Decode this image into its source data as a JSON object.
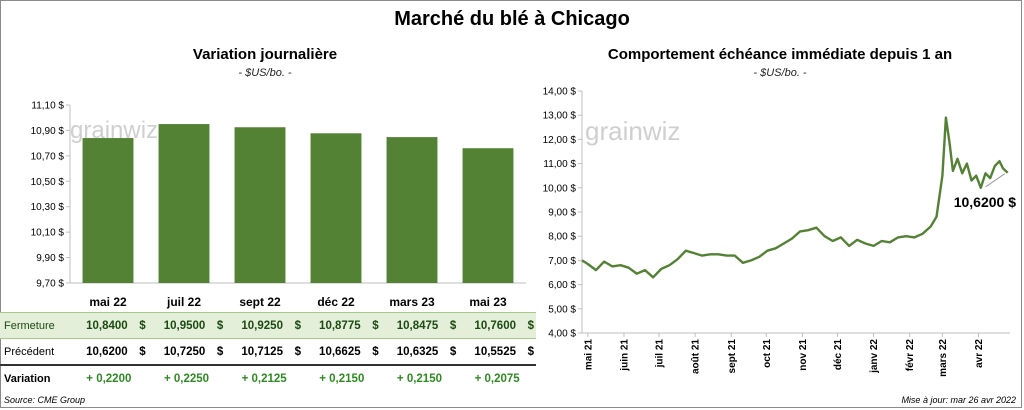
{
  "title": "Marché du blé à Chicago",
  "watermark": "grainwiz",
  "colors": {
    "bar": "#548235",
    "line": "#548235",
    "variation": "#2e8b22",
    "close_row_bg": "#e3efd9"
  },
  "left_chart": {
    "subtitle": "Variation journalière",
    "unit": "- $US/bo. -"
  },
  "right_chart": {
    "subtitle": "Comportement échéance immédiate depuis 1 an",
    "unit": "- $US/bo. -",
    "last_price_label": "10,6200 $"
  },
  "table": {
    "rows": [
      {
        "label": "Fermeture",
        "values": [
          "10,8400",
          "10,9500",
          "10,9250",
          "10,8775",
          "10,8475",
          "10,7600"
        ]
      },
      {
        "label": "Précédent",
        "values": [
          "10,6200",
          "10,7250",
          "10,7125",
          "10,6625",
          "10,6325",
          "10,5525"
        ]
      }
    ],
    "currency": "$",
    "variation_label": "Variation",
    "variations": [
      "+ 0,2200",
      "+ 0,2250",
      "+ 0,2125",
      "+ 0,2150",
      "+ 0,2150",
      "+ 0,2075"
    ]
  },
  "footer": {
    "source": "Source: CME Group",
    "updated": "Mise à jour: mar 26 avr 2022"
  },
  "chart_data": [
    {
      "type": "bar",
      "title": "Variation journalière",
      "categories": [
        "mai 22",
        "juil 22",
        "sept 22",
        "déc 22",
        "mars 23",
        "mai 23"
      ],
      "values": [
        10.84,
        10.95,
        10.925,
        10.8775,
        10.8475,
        10.76
      ],
      "ylim": [
        9.7,
        11.1
      ],
      "yticks": [
        "9,70 $",
        "9,90 $",
        "10,10 $",
        "10,30 $",
        "10,50 $",
        "10,70 $",
        "10,90 $",
        "11,10 $"
      ],
      "grid": false,
      "legend": "none"
    },
    {
      "type": "line",
      "title": "Comportement échéance immédiate depuis 1 an",
      "x_labels": [
        "mai 21",
        "juin 21",
        "juil 21",
        "août 21",
        "sept 21",
        "oct 21",
        "nov 21",
        "déc 21",
        "janv 22",
        "févr 22",
        "mars 22",
        "avr 22"
      ],
      "ylim": [
        4,
        14
      ],
      "yticks": [
        "4,00 $",
        "5,00 $",
        "6,00 $",
        "7,00 $",
        "8,00 $",
        "9,00 $",
        "10,00 $",
        "11,00 $",
        "12,00 $",
        "13,00 $",
        "14,00 $"
      ],
      "series": [
        {
          "x": [
            "2021-04-26",
            "2021-05-01",
            "2021-05-08",
            "2021-05-15",
            "2021-05-22",
            "2021-05-29",
            "2021-06-05",
            "2021-06-12",
            "2021-06-19",
            "2021-06-26",
            "2021-07-03",
            "2021-07-10",
            "2021-07-17",
            "2021-07-24",
            "2021-07-31",
            "2021-08-07",
            "2021-08-14",
            "2021-08-21",
            "2021-08-28",
            "2021-09-04",
            "2021-09-11",
            "2021-09-18",
            "2021-09-25",
            "2021-10-02",
            "2021-10-09",
            "2021-10-16",
            "2021-10-23",
            "2021-10-30",
            "2021-11-06",
            "2021-11-13",
            "2021-11-20",
            "2021-11-27",
            "2021-12-04",
            "2021-12-11",
            "2021-12-18",
            "2021-12-25",
            "2022-01-01",
            "2022-01-08",
            "2022-01-15",
            "2022-01-22",
            "2022-01-29",
            "2022-02-05",
            "2022-02-12",
            "2022-02-19",
            "2022-02-24",
            "2022-03-01",
            "2022-03-04",
            "2022-03-07",
            "2022-03-10",
            "2022-03-14",
            "2022-03-18",
            "2022-03-22",
            "2022-03-26",
            "2022-03-30",
            "2022-04-03",
            "2022-04-07",
            "2022-04-11",
            "2022-04-15",
            "2022-04-19",
            "2022-04-22",
            "2022-04-26"
          ],
          "y": [
            7.0,
            6.85,
            6.6,
            6.95,
            6.75,
            6.8,
            6.7,
            6.45,
            6.6,
            6.3,
            6.65,
            6.8,
            7.05,
            7.4,
            7.3,
            7.2,
            7.25,
            7.25,
            7.2,
            7.2,
            6.9,
            7.0,
            7.15,
            7.4,
            7.5,
            7.7,
            7.9,
            8.2,
            8.25,
            8.35,
            8.0,
            7.8,
            7.95,
            7.6,
            7.85,
            7.7,
            7.6,
            7.8,
            7.75,
            7.95,
            8.0,
            7.95,
            8.1,
            8.4,
            8.8,
            10.5,
            12.9,
            11.9,
            10.7,
            11.2,
            10.6,
            11.0,
            10.3,
            10.5,
            10.0,
            10.6,
            10.4,
            10.9,
            11.1,
            10.8,
            10.62
          ]
        }
      ],
      "last_value": 10.62,
      "grid": false,
      "legend": "none"
    }
  ]
}
